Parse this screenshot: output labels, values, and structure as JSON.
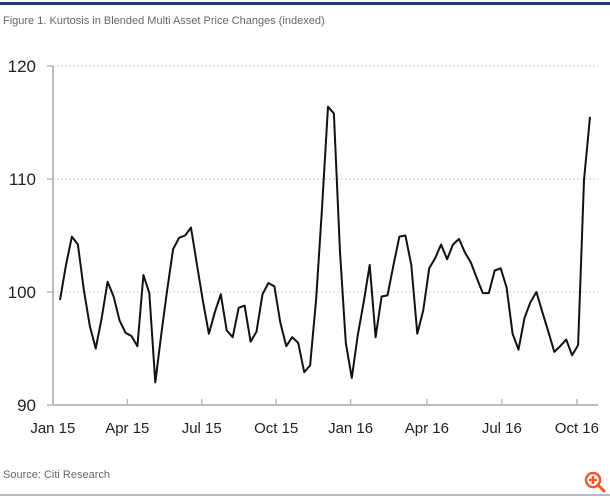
{
  "title": "Figure 1. Kurtosis in Blended Multi Asset Price Changes (indexed)",
  "source": "Source: Citi Research",
  "icons": {
    "zoom": "zoom-in-icon"
  },
  "colors": {
    "line": "#111111",
    "accent": "#f05a28",
    "topbar": "#1f3a7a",
    "grid": "#cccccc",
    "axis": "#bbbbbb"
  },
  "chart_data": {
    "type": "line",
    "title": "Figure 1. Kurtosis in Blended Multi Asset Price Changes (indexed)",
    "xlabel": "",
    "ylabel": "",
    "ylim": [
      90,
      120
    ],
    "yticks": [
      90,
      100,
      110,
      120
    ],
    "grid": true,
    "x_unit": "week index",
    "xlim": [
      -1.2,
      90.5
    ],
    "xticks": [
      {
        "label": "Jan 15",
        "x": -1.2
      },
      {
        "label": "Apr 15",
        "x": 11.3
      },
      {
        "label": "Jul 15",
        "x": 23.8
      },
      {
        "label": "Oct 15",
        "x": 36.3
      },
      {
        "label": "Jan 16",
        "x": 48.8
      },
      {
        "label": "Apr 16",
        "x": 61.6
      },
      {
        "label": "Jul 16",
        "x": 74.2
      },
      {
        "label": "Oct 16",
        "x": 86.8
      }
    ],
    "series": [
      {
        "name": "Kurtosis",
        "values": [
          99.3,
          102.4,
          104.9,
          104.2,
          100.2,
          97,
          95,
          97.7,
          100.9,
          99.6,
          97.5,
          96.4,
          96.1,
          95.2,
          101.5,
          99.9,
          92,
          96.2,
          100.2,
          103.8,
          104.8,
          105,
          105.7,
          102.4,
          99.2,
          96.3,
          98.2,
          99.8,
          96.6,
          96,
          98.6,
          98.8,
          95.6,
          96.5,
          99.8,
          100.8,
          100.5,
          97.3,
          95.2,
          96,
          95.5,
          92.9,
          93.5,
          99.3,
          107.4,
          116.4,
          115.8,
          103.7,
          95.5,
          92.4,
          96.2,
          99.1,
          102.4,
          96,
          99.6,
          99.7,
          102.4,
          104.9,
          105,
          102.4,
          96.3,
          98.4,
          102.1,
          103,
          104.2,
          102.9,
          104.2,
          104.7,
          103.5,
          102.6,
          101.2,
          99.9,
          99.9,
          101.9,
          102.1,
          100.4,
          96.3,
          94.9,
          97.7,
          99.1,
          100,
          98.2,
          96.5,
          94.7,
          95.2,
          95.8,
          94.4,
          95.3,
          109.9,
          115.5
        ]
      }
    ]
  }
}
